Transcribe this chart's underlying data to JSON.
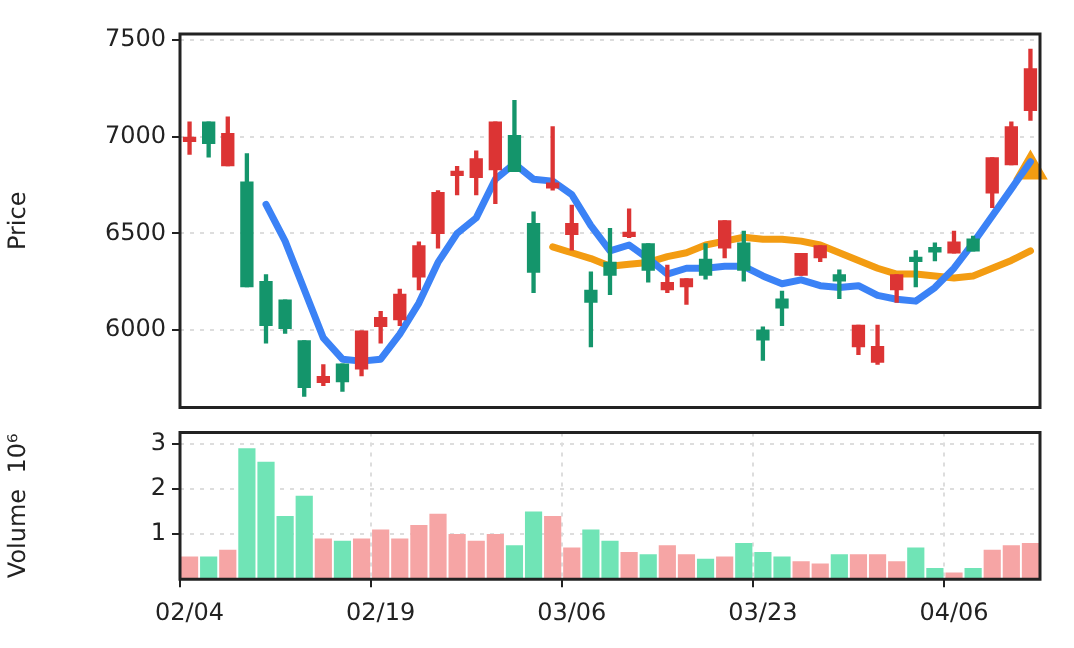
{
  "chart_data": [
    {
      "type": "candlestick",
      "ylabel": "Price",
      "categories": [
        null,
        null,
        null,
        null,
        null,
        null,
        null,
        null,
        null,
        null,
        null,
        null,
        null,
        null,
        null,
        null,
        null,
        null,
        null,
        null,
        null,
        null,
        null,
        null,
        null,
        null,
        null,
        null,
        null,
        null,
        null,
        null,
        null,
        null,
        null,
        null,
        null,
        null,
        null,
        null,
        null,
        null,
        null,
        null,
        null
      ],
      "ohlc": [
        [
          6975,
          7075,
          6910,
          6985
        ],
        [
          7075,
          7075,
          6895,
          6965
        ],
        [
          6850,
          7100,
          6850,
          7015
        ],
        [
          6765,
          6910,
          6225,
          6225
        ],
        [
          6250,
          6285,
          5935,
          6025
        ],
        [
          6155,
          6155,
          5985,
          6010
        ],
        [
          5945,
          5945,
          5660,
          5705
        ],
        [
          5730,
          5820,
          5715,
          5760
        ],
        [
          5825,
          5825,
          5685,
          5735
        ],
        [
          5800,
          5995,
          5765,
          5995
        ],
        [
          6020,
          6095,
          5935,
          6065
        ],
        [
          6055,
          6210,
          6025,
          6185
        ],
        [
          6275,
          6455,
          6210,
          6435
        ],
        [
          6500,
          6720,
          6425,
          6710
        ],
        [
          6800,
          6845,
          6700,
          6810
        ],
        [
          6790,
          6925,
          6700,
          6885
        ],
        [
          6830,
          7075,
          6655,
          7075
        ],
        [
          7005,
          7185,
          6820,
          6820
        ],
        [
          6550,
          6610,
          6195,
          6300
        ],
        [
          6735,
          7050,
          6725,
          6760
        ],
        [
          6495,
          6645,
          6415,
          6550
        ],
        [
          6205,
          6300,
          5915,
          6145
        ],
        [
          6350,
          6525,
          6185,
          6285
        ],
        [
          6485,
          6625,
          6480,
          6500
        ],
        [
          6445,
          6445,
          6250,
          6310
        ],
        [
          6210,
          6335,
          6195,
          6245
        ],
        [
          6225,
          6265,
          6135,
          6265
        ],
        [
          6365,
          6445,
          6265,
          6285
        ],
        [
          6425,
          6565,
          6375,
          6565
        ],
        [
          6450,
          6510,
          6255,
          6310
        ],
        [
          6000,
          6015,
          5845,
          5950
        ],
        [
          6160,
          6200,
          6025,
          6115
        ],
        [
          6285,
          6395,
          6285,
          6395
        ],
        [
          6375,
          6435,
          6355,
          6435
        ],
        [
          6285,
          6310,
          6165,
          6255
        ],
        [
          5915,
          6025,
          5875,
          6025
        ],
        [
          5835,
          6025,
          5825,
          5915
        ],
        [
          6210,
          6285,
          6145,
          6285
        ],
        [
          6365,
          6410,
          6225,
          6355
        ],
        [
          6415,
          6450,
          6360,
          6405
        ],
        [
          6400,
          6510,
          6400,
          6455
        ],
        [
          6470,
          6485,
          6410,
          6410
        ],
        [
          6710,
          6890,
          6635,
          6890
        ],
        [
          6855,
          7075,
          6855,
          7050
        ],
        [
          7135,
          7450,
          7085,
          7350
        ]
      ],
      "colors": [
        "#dc3434",
        "#14956b",
        "#dc3434",
        "#14956b",
        "#14956b",
        "#14956b",
        "#14956b",
        "#dc3434",
        "#14956b",
        "#dc3434",
        "#dc3434",
        "#dc3434",
        "#dc3434",
        "#dc3434",
        "#dc3434",
        "#dc3434",
        "#dc3434",
        "#14956b",
        "#14956b",
        "#dc3434",
        "#dc3434",
        "#14956b",
        "#14956b",
        "#dc3434",
        "#14956b",
        "#dc3434",
        "#dc3434",
        "#14956b",
        "#dc3434",
        "#14956b",
        "#14956b",
        "#14956b",
        "#dc3434",
        "#dc3434",
        "#14956b",
        "#dc3434",
        "#dc3434",
        "#dc3434",
        "#14956b",
        "#14956b",
        "#dc3434",
        "#14956b",
        "#dc3434",
        "#dc3434",
        "#dc3434"
      ],
      "series": [
        {
          "type": "line",
          "color": "#3b82f6",
          "values": [
            null,
            null,
            null,
            null,
            6650,
            6460,
            6210,
            5960,
            5850,
            5840,
            5850,
            5980,
            6140,
            6350,
            6500,
            6580,
            6780,
            6860,
            6780,
            6770,
            6700,
            6540,
            6410,
            6440,
            6370,
            6290,
            6320,
            6320,
            6330,
            6330,
            6280,
            6240,
            6260,
            6230,
            6220,
            6230,
            6180,
            6160,
            6150,
            6220,
            6320,
            6450,
            6590,
            6730,
            6870
          ]
        },
        {
          "type": "line",
          "color": "#f39c12",
          "values": [
            null,
            null,
            null,
            null,
            null,
            null,
            null,
            null,
            null,
            null,
            null,
            null,
            null,
            null,
            null,
            null,
            null,
            null,
            null,
            6430,
            6400,
            6370,
            6330,
            6340,
            6350,
            6380,
            6400,
            6440,
            6460,
            6480,
            6470,
            6470,
            6460,
            6440,
            6400,
            6360,
            6320,
            6290,
            6290,
            6280,
            6270,
            6280,
            6320,
            6360,
            6410
          ]
        },
        {
          "type": "scatter",
          "color": "#f39c12",
          "marker": "triangle",
          "values": [
            null,
            null,
            null,
            null,
            null,
            null,
            null,
            null,
            null,
            null,
            null,
            null,
            null,
            null,
            null,
            null,
            null,
            null,
            null,
            null,
            null,
            null,
            null,
            null,
            null,
            null,
            null,
            null,
            null,
            null,
            null,
            null,
            null,
            null,
            null,
            null,
            null,
            null,
            null,
            null,
            null,
            null,
            null,
            null,
            6830
          ]
        }
      ],
      "ylim": [
        5600,
        7530
      ],
      "yticks": [
        6000,
        6500,
        7000,
        7500
      ],
      "grid": true,
      "tick_labels": "y"
    },
    {
      "type": "bar",
      "ylabel": "Volume  10⁶",
      "categories": [
        "02/04",
        null,
        null,
        null,
        null,
        null,
        null,
        null,
        null,
        null,
        "02/19",
        null,
        null,
        null,
        null,
        null,
        null,
        null,
        null,
        null,
        "03/06",
        null,
        null,
        null,
        null,
        null,
        null,
        null,
        null,
        null,
        "03/23",
        null,
        null,
        null,
        null,
        null,
        null,
        null,
        null,
        null,
        "04/06",
        null,
        null,
        null,
        null
      ],
      "values": [
        0.5,
        0.5,
        0.65,
        2.9,
        2.6,
        1.4,
        1.85,
        0.9,
        0.85,
        0.9,
        1.1,
        0.9,
        1.2,
        1.45,
        1.0,
        0.85,
        1.0,
        0.75,
        1.5,
        1.4,
        0.7,
        1.1,
        0.85,
        0.6,
        0.55,
        0.75,
        0.55,
        0.45,
        0.5,
        0.8,
        0.6,
        0.5,
        0.4,
        0.35,
        0.55,
        0.55,
        0.55,
        0.4,
        0.7,
        0.25,
        0.15,
        0.25,
        0.65,
        0.75,
        0.8
      ],
      "colors": [
        "#f6a5a5",
        "#70e4b6",
        "#f6a5a5",
        "#70e4b6",
        "#70e4b6",
        "#70e4b6",
        "#70e4b6",
        "#f6a5a5",
        "#70e4b6",
        "#f6a5a5",
        "#f6a5a5",
        "#f6a5a5",
        "#f6a5a5",
        "#f6a5a5",
        "#f6a5a5",
        "#f6a5a5",
        "#f6a5a5",
        "#70e4b6",
        "#70e4b6",
        "#f6a5a5",
        "#f6a5a5",
        "#70e4b6",
        "#70e4b6",
        "#f6a5a5",
        "#70e4b6",
        "#f6a5a5",
        "#f6a5a5",
        "#70e4b6",
        "#f6a5a5",
        "#70e4b6",
        "#70e4b6",
        "#70e4b6",
        "#f6a5a5",
        "#f6a5a5",
        "#70e4b6",
        "#f6a5a5",
        "#f6a5a5",
        "#f6a5a5",
        "#70e4b6",
        "#70e4b6",
        "#f6a5a5",
        "#70e4b6",
        "#f6a5a5",
        "#f6a5a5",
        "#f6a5a5"
      ],
      "ylim": [
        0,
        3.25
      ],
      "yticks": [
        1,
        2,
        3
      ],
      "grid": true
    }
  ]
}
